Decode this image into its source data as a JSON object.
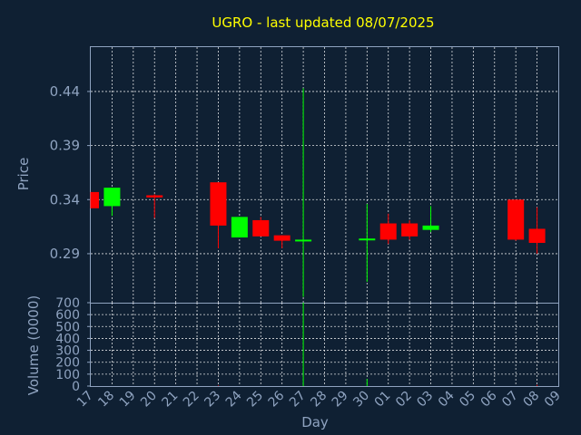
{
  "chart_data": {
    "type": "candlestick",
    "title": "UGRO - last updated 08/07/2025",
    "xlabel": "Day",
    "price_panel": {
      "ylabel": "Price",
      "yticks": [
        "0.44",
        "0.39",
        "0.34",
        "0.29"
      ],
      "ylim": [
        0.2447,
        0.481
      ]
    },
    "volume_panel": {
      "ylabel": "Volume (0000)",
      "yticks": [
        "700",
        "600",
        "500",
        "400",
        "300",
        "200",
        "100",
        "0"
      ],
      "ylim": [
        0,
        700
      ]
    },
    "x_tick_labels": [
      "17",
      "18",
      "19",
      "20",
      "21",
      "22",
      "23",
      "24",
      "25",
      "26",
      "27",
      "28",
      "29",
      "30",
      "01",
      "02",
      "03",
      "04",
      "05",
      "06",
      "07",
      "08",
      "09"
    ],
    "grid": true,
    "colors": {
      "up": "#00ff00",
      "down": "#ff0000",
      "title": "#ffff00",
      "axis": "#8fa3c0",
      "background": "#0f2033",
      "grid": "#ffffff"
    },
    "candles": [
      {
        "day": "17",
        "open": 0.347,
        "high": 0.347,
        "low": 0.332,
        "close": 0.332,
        "volume": 0
      },
      {
        "day": "18",
        "open": 0.334,
        "high": 0.351,
        "low": 0.325,
        "close": 0.351,
        "volume": 0
      },
      {
        "day": "20",
        "open": 0.344,
        "high": 0.345,
        "low": 0.323,
        "close": 0.342,
        "volume": 0
      },
      {
        "day": "23",
        "open": 0.356,
        "high": 0.356,
        "low": 0.295,
        "close": 0.316,
        "volume": 5
      },
      {
        "day": "24",
        "open": 0.305,
        "high": 0.324,
        "low": 0.305,
        "close": 0.324,
        "volume": 0
      },
      {
        "day": "25",
        "open": 0.321,
        "high": 0.324,
        "low": 0.306,
        "close": 0.306,
        "volume": 0
      },
      {
        "day": "26",
        "open": 0.307,
        "high": 0.307,
        "low": 0.295,
        "close": 0.302,
        "volume": 0
      },
      {
        "day": "27",
        "open": 0.302,
        "high": 0.443,
        "low": 0.25,
        "close": 0.303,
        "volume": 700
      },
      {
        "day": "30",
        "open": 0.303,
        "high": 0.336,
        "low": 0.264,
        "close": 0.304,
        "volume": 60
      },
      {
        "day": "01",
        "open": 0.318,
        "high": 0.327,
        "low": 0.299,
        "close": 0.303,
        "volume": 0
      },
      {
        "day": "02",
        "open": 0.318,
        "high": 0.321,
        "low": 0.303,
        "close": 0.306,
        "volume": 0
      },
      {
        "day": "03",
        "open": 0.312,
        "high": 0.334,
        "low": 0.31,
        "close": 0.316,
        "volume": 0
      },
      {
        "day": "07",
        "open": 0.34,
        "high": 0.34,
        "low": 0.302,
        "close": 0.303,
        "volume": 0
      },
      {
        "day": "08",
        "open": 0.313,
        "high": 0.333,
        "low": 0.29,
        "close": 0.3,
        "volume": 10
      }
    ]
  }
}
